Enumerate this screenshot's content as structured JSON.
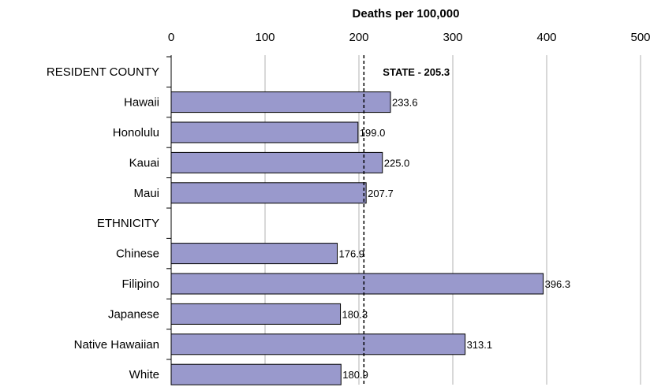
{
  "chart_data": {
    "type": "bar",
    "orientation": "horizontal",
    "xlabel": "Deaths per 100,000",
    "x_axis_position": "top",
    "xlim": [
      0,
      500
    ],
    "xticks": [
      0,
      100,
      200,
      300,
      400,
      500
    ],
    "grid": "vertical",
    "categories": [
      "RESIDENT COUNTY",
      "Hawaii",
      "Honolulu",
      "Kauai",
      "Maui",
      "ETHNICITY",
      "Chinese",
      "Filipino",
      "Japanese",
      "Native Hawaiian",
      "White"
    ],
    "values": [
      null,
      233.6,
      199.0,
      225.0,
      207.7,
      null,
      176.9,
      396.3,
      180.3,
      313.1,
      180.9
    ],
    "value_labels": [
      "",
      "233.6",
      "199.0",
      "225.0",
      "207.7",
      "",
      "176.9",
      "396.3",
      "180.3",
      "313.1",
      "180.9"
    ],
    "reference_line": {
      "value": 205.3,
      "label": "STATE - 205.3",
      "style": "dashed"
    },
    "bar_color": "#9999cc",
    "bar_edge_color": "#000000"
  }
}
